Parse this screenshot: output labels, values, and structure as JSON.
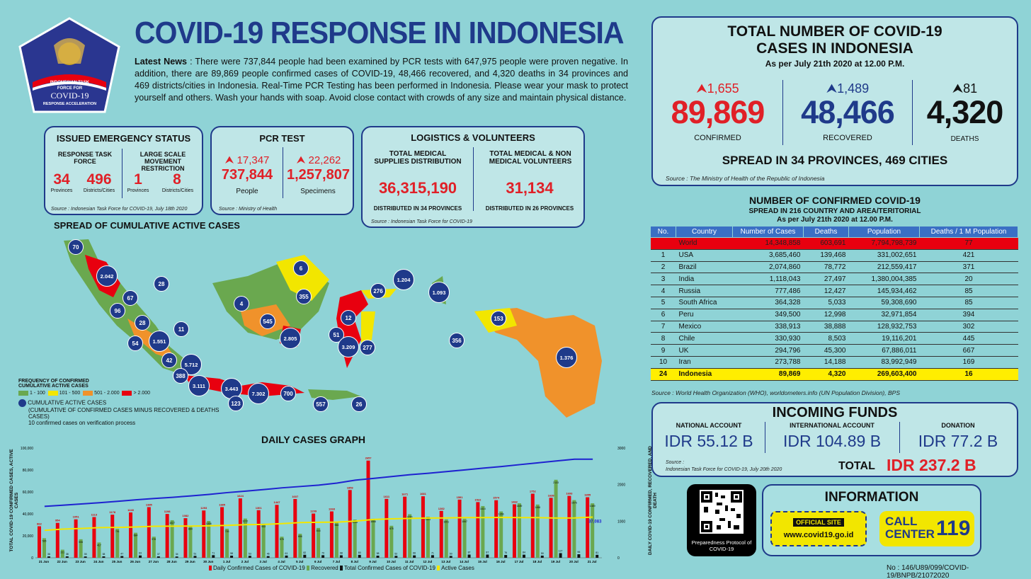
{
  "logo": {
    "line1": "INDONESIAN TASK",
    "line2": "FORCE FOR",
    "line3": "COVID-19",
    "line4": "RESPONSE ACCELERATION"
  },
  "title": "COVID-19 RESPONSE IN INDONESIA",
  "news": {
    "lead": "Latest News",
    "body": " : There were 737,844 people had been examined by PCR tests with 647,975 people were proven negative. In addition, there are 89,869 people confirmed cases of COVID-19, 48,466 recovered, and 4,320 deaths in 34 provinces and 469 districts/cities in Indonesia. Real-Time PCR Testing has been performed in Indonesia. Please wear your mask to protect yourself and others. Wash your hands with soap. Avoid close contact with crowds of any size and maintain physical distance."
  },
  "emergency": {
    "title": "ISSUED EMERGENCY STATUS",
    "col1": "RESPONSE TASK FORCE",
    "col2": "LARGE SCALE MOVEMENT RESTRICTION",
    "v1": "34",
    "l1": "Provinces",
    "v2": "496",
    "l2": "Districts/Cities",
    "v3": "1",
    "l3": "Provinces",
    "v4": "8",
    "l4": "Districts/Cities",
    "source": "Source : Indonesian Task Force for COVID-19, July 18th 2020"
  },
  "pcr": {
    "title": "PCR TEST",
    "inc1": "17,347",
    "val1": "737,844",
    "lab1": "People",
    "inc2": "22,262",
    "val2": "1,257,807",
    "lab2": "Specimens",
    "source": "Source : Ministry of Health"
  },
  "logistics": {
    "title": "LOGISTICS & VOLUNTEERS",
    "h1": "TOTAL MEDICAL SUPPLIES DISTRIBUTION",
    "v1": "36,315,190",
    "d1": "DISTRIBUTED IN 34 PROVINCES",
    "h2": "TOTAL MEDICAL & NON MEDICAL VOLUNTEERS",
    "v2": "31,134",
    "d2": "DISTRIBUTED IN 26 PROVINCES",
    "source": "Source : Indonesian Task Force for COVID-19"
  },
  "map": {
    "title": "SPREAD OF CUMULATIVE ACTIVE CASES",
    "legend_title": "FREQUENCY OF CONFIRMED CUMULATIVE ACTIVE CASES",
    "legend": [
      {
        "label": "1 - 100",
        "color": "#6aa84f"
      },
      {
        "label": "101 - 500",
        "color": "#f2e600"
      },
      {
        "label": "501 - 2.000",
        "color": "#f0922b"
      },
      {
        "label": "> 2.000",
        "color": "#e8000f"
      }
    ],
    "dot_label": "CUMULATIVE ACTIVE CASES",
    "dot_note": "(CUMULATIVE OF CONFIRMED CASES MINUS RECOVERED & DEATHS CASES)",
    "dot_note2": "10 confirmed cases on verification process",
    "dots": [
      "70",
      "2.042",
      "28",
      "67",
      "96",
      "28",
      "11",
      "54",
      "1.551",
      "42",
      "5.712",
      "388",
      "3.111",
      "3.443",
      "7.302",
      "123",
      "700",
      "557",
      "26",
      "4",
      "545",
      "2.805",
      "6",
      "355",
      "276",
      "1.204",
      "1.093",
      "12",
      "51",
      "3.209",
      "277",
      "356",
      "153",
      "1.376"
    ]
  },
  "graph": {
    "title": "DAILY CASES GRAPH",
    "ylabel_left": "TOTAL COVID-19 CONFIRMED CASES, ACTIVE CASES",
    "ylabel_right": "DAILY COVID-19 CONFIRMED, RECOVERED, AND DEATH",
    "left_ticks": [
      "100,000",
      "80,000",
      "60,000",
      "40,000",
      "20,000",
      "0"
    ],
    "right_ticks": [
      "3000",
      "2000",
      "1000",
      "0"
    ],
    "legend": [
      "Daily Confirmed Cases of COVID-19",
      "Recovered",
      "Total Confirmed Cases of COVID-19",
      "Active Cases"
    ],
    "active_label": "37,083"
  },
  "chart_data": {
    "type": "bar",
    "categories": [
      "21 Jun",
      "22 Jun",
      "23 Jun",
      "24 Jun",
      "25 Jun",
      "26 Jun",
      "27 Jun",
      "28 Jun",
      "29 Jun",
      "30 Jun",
      "1 Jul",
      "2 Jul",
      "3 Jul",
      "4 Jul",
      "5 Jul",
      "6 Jul",
      "7 Jul",
      "8 Jul",
      "9 Jul",
      "10 Jul",
      "11 Jul",
      "12 Jul",
      "13 Jul",
      "14 Jul",
      "15 Jul",
      "16 Jul",
      "17 Jul",
      "18 Jul",
      "19 Jul",
      "20 Jul",
      "21 Jul"
    ],
    "series": [
      {
        "name": "Daily Confirmed Cases of COVID-19",
        "axis": "right",
        "values": [
          862,
          954,
          1051,
          1113,
          1178,
          1240,
          1385,
          1198,
          1082,
          1293,
          1385,
          1624,
          1301,
          1447,
          1607,
          1209,
          1268,
          1853,
          2657,
          1611,
          1671,
          1681,
          1282,
          1591,
          1522,
          1574,
          1462,
          1752,
          1639,
          1693,
          1655
        ]
      },
      {
        "name": "Recovered",
        "axis": "right",
        "values": [
          535,
          221,
          506,
          417,
          791,
          684,
          576,
          1027,
          864,
          1006,
          793,
          1072,
          933,
          576,
          656,
          816,
          966,
          1044,
          1066,
          875,
          1190,
          1121,
          1051,
          1067,
          1414,
          1266,
          1489,
          1456,
          2133,
          1576,
          1489
        ]
      },
      {
        "name": "Deaths",
        "axis": "right",
        "values": [
          36,
          38,
          35,
          38,
          47,
          63,
          37,
          34,
          51,
          71,
          58,
          53,
          46,
          61,
          82,
          70,
          68,
          80,
          58,
          52,
          66,
          71,
          50,
          87,
          87,
          76,
          84,
          59,
          127,
          96,
          81
        ]
      },
      {
        "name": "Total Confirmed Cases of COVID-19",
        "axis": "left",
        "values": [
          46845,
          47896,
          49009,
          50187,
          51427,
          52812,
          54010,
          55092,
          56385,
          57770,
          59394,
          60695,
          62142,
          63749,
          64958,
          66226,
          68079,
          70736,
          72347,
          74018,
          75699,
          76981,
          78572,
          80094,
          81668,
          83130,
          84882,
          86521,
          88214,
          89869,
          89869
        ]
      },
      {
        "name": "Active Cases",
        "axis": "left",
        "values": [
          25000,
          26100,
          26700,
          27500,
          27700,
          28100,
          28700,
          28800,
          28900,
          29100,
          29500,
          30200,
          30400,
          31100,
          32100,
          32300,
          32500,
          33400,
          34900,
          35500,
          35900,
          36200,
          36300,
          36600,
          36600,
          36800,
          36600,
          36600,
          36200,
          36300,
          37083
        ]
      }
    ],
    "ylim_left": [
      0,
      100000
    ],
    "ylim_right": [
      0,
      3000
    ]
  },
  "totals": {
    "title1": "TOTAL NUMBER OF COVID-19",
    "title2": "CASES IN INDONESIA",
    "asof": "As per July 21th 2020 at 12.00 P.M.",
    "inc_confirmed": "1,655",
    "confirmed": "89,869",
    "confirmed_label": "CONFIRMED",
    "inc_recovered": "1,489",
    "recovered": "48,466",
    "recovered_label": "RECOVERED",
    "inc_deaths": "81",
    "deaths": "4,320",
    "deaths_label": "DEATHS",
    "spread": "SPREAD IN 34 PROVINCES, 469 CITIES",
    "source": "Source : The Ministry of Health of the Republic of Indonesia"
  },
  "world": {
    "title": "NUMBER OF CONFIRMED COVID-19",
    "sub": "SPREAD IN 216 COUNTRY AND AREA/TERITORIAL",
    "asof": "As per July 21th 2020 at 12.00 P.M.",
    "headers": [
      "No.",
      "Country",
      "Number of Cases",
      "Deaths",
      "Population",
      "Deaths / 1 M Population"
    ],
    "world_row": [
      "",
      "World",
      "14,348,858",
      "603,691",
      "7,794,798,739",
      "77"
    ],
    "rows": [
      [
        "1",
        "USA",
        "3,685,460",
        "139,468",
        "331,002,651",
        "421"
      ],
      [
        "2",
        "Brazil",
        "2,074,860",
        "78,772",
        "212,559,417",
        "371"
      ],
      [
        "3",
        "India",
        "1,118,043",
        "27,497",
        "1,380,004,385",
        "20"
      ],
      [
        "4",
        "Russia",
        "777,486",
        "12,427",
        "145,934,462",
        "85"
      ],
      [
        "5",
        "South Africa",
        "364,328",
        "5,033",
        "59,308,690",
        "85"
      ],
      [
        "6",
        "Peru",
        "349,500",
        "12,998",
        "32,971,854",
        "394"
      ],
      [
        "7",
        "Mexico",
        "338,913",
        "38,888",
        "128,932,753",
        "302"
      ],
      [
        "8",
        "Chile",
        "330,930",
        "8,503",
        "19,116,201",
        "445"
      ],
      [
        "9",
        "UK",
        "294,796",
        "45,300",
        "67,886,011",
        "667"
      ],
      [
        "10",
        "Iran",
        "273,788",
        "14,188",
        "83,992,949",
        "169"
      ]
    ],
    "indo_row": [
      "24",
      "Indonesia",
      "89,869",
      "4,320",
      "269,603,400",
      "16"
    ],
    "source": "Source : World Health Organization (WHO), worldometers.info (UN Population Division), BPS"
  },
  "funds": {
    "title": "INCOMING FUNDS",
    "l1": "NATIONAL ACCOUNT",
    "v1": "IDR 55.12 B",
    "l2": "INTERNATIONAL ACCOUNT",
    "v2": "IDR 104.89 B",
    "l3": "DONATION",
    "v3": "IDR 77.2 B",
    "source1": "Source :",
    "source2": "Indonesian Task Force for COVID-19, July 20th 2020",
    "total_label": "TOTAL",
    "total": "IDR 237.2 B"
  },
  "qr": {
    "caption": "Preparedness Protocol of COVID-19"
  },
  "info": {
    "title": "INFORMATION",
    "site_label": "OFFICIAL SITE",
    "site": "www.covid19.go.id",
    "call": "CALL",
    "center": "CENTER",
    "number": "119"
  },
  "docno": "No : 146/U89/099/COVID-19/BNPB/21072020"
}
